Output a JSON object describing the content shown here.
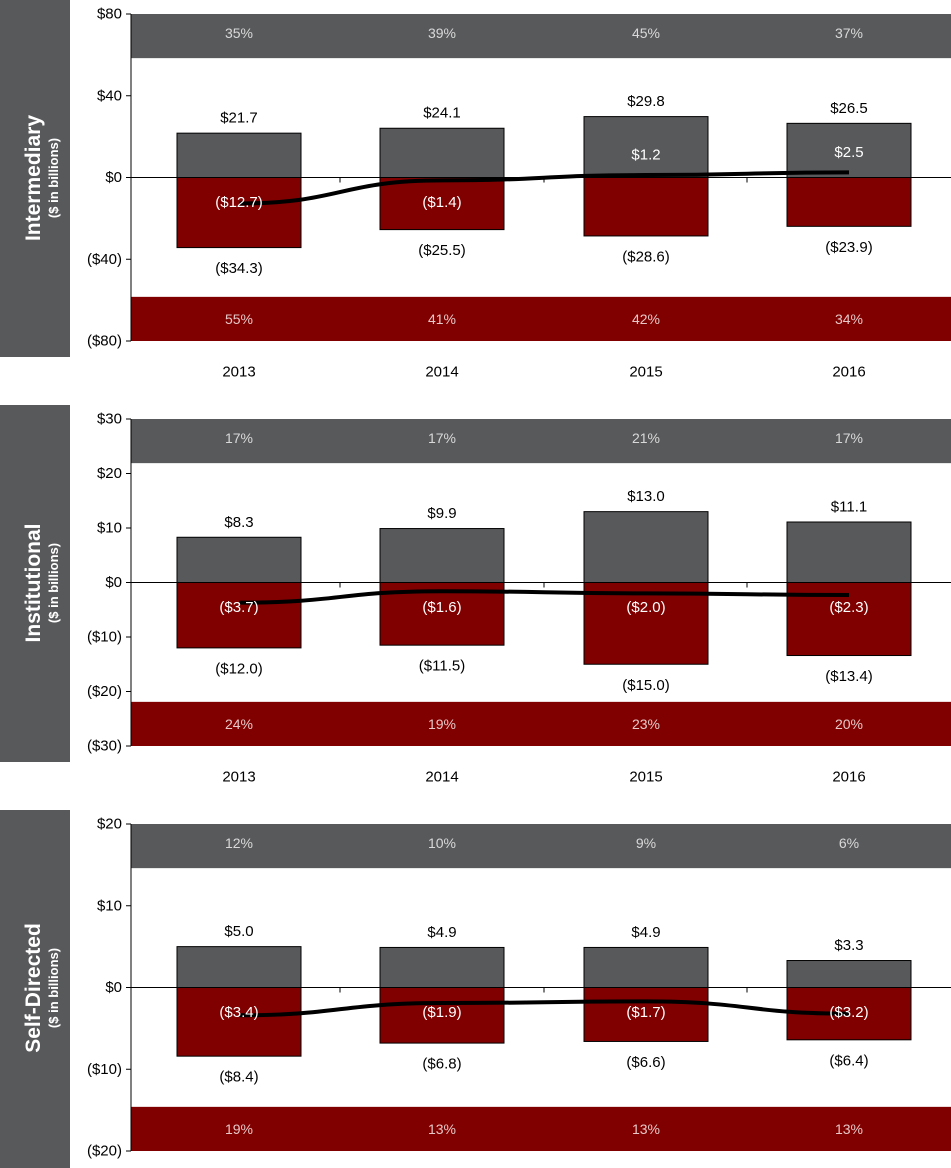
{
  "chart_data": [
    {
      "type": "bar",
      "title": "Intermediary",
      "subtitle": "($ in billions)",
      "categories": [
        "2013",
        "2014",
        "2015",
        "2016"
      ],
      "ylim": [
        -80,
        80
      ],
      "yticks": [
        "$80",
        "$40",
        "$0",
        "($40)",
        "($80)"
      ],
      "band_top": [
        "35%",
        "39%",
        "45%",
        "37%"
      ],
      "band_bottom": [
        "55%",
        "41%",
        "42%",
        "34%"
      ],
      "positive": {
        "values": [
          21.7,
          24.1,
          29.8,
          26.5
        ],
        "labels": [
          "$21.7",
          "$24.1",
          "$29.8",
          "$26.5"
        ],
        "color": "#58595b"
      },
      "negative": {
        "values": [
          -34.3,
          -25.5,
          -28.6,
          -23.9
        ],
        "labels": [
          "($34.3)",
          "($25.5)",
          "($28.6)",
          "($23.9)"
        ],
        "color": "#800000"
      },
      "net": {
        "values": [
          -12.7,
          -1.4,
          1.2,
          2.5
        ],
        "labels": [
          "($12.7)",
          "($1.4)",
          "$1.2",
          "$2.5"
        ],
        "color": "#000000"
      }
    },
    {
      "type": "bar",
      "title": "Institutional",
      "subtitle": "($ in billions)",
      "categories": [
        "2013",
        "2014",
        "2015",
        "2016"
      ],
      "ylim": [
        -30,
        30
      ],
      "yticks": [
        "$30",
        "$20",
        "$10",
        "$0",
        "($10)",
        "($20)",
        "($30)"
      ],
      "band_top": [
        "17%",
        "17%",
        "21%",
        "17%"
      ],
      "band_bottom": [
        "24%",
        "19%",
        "23%",
        "20%"
      ],
      "positive": {
        "values": [
          8.3,
          9.9,
          13.0,
          11.1
        ],
        "labels": [
          "$8.3",
          "$9.9",
          "$13.0",
          "$11.1"
        ],
        "color": "#58595b"
      },
      "negative": {
        "values": [
          -12.0,
          -11.5,
          -15.0,
          -13.4
        ],
        "labels": [
          "($12.0)",
          "($11.5)",
          "($15.0)",
          "($13.4)"
        ],
        "color": "#800000"
      },
      "net": {
        "values": [
          -3.7,
          -1.6,
          -2.0,
          -2.3
        ],
        "labels": [
          "($3.7)",
          "($1.6)",
          "($2.0)",
          "($2.3)"
        ],
        "color": "#000000"
      }
    },
    {
      "type": "bar",
      "title": "Self-Directed",
      "subtitle": "($ in billions)",
      "categories": [
        "2013",
        "2014",
        "2015",
        "2016"
      ],
      "ylim": [
        -20,
        20
      ],
      "yticks": [
        "$20",
        "$10",
        "$0",
        "($10)",
        "($20)"
      ],
      "band_top": [
        "12%",
        "10%",
        "9%",
        "6%"
      ],
      "band_bottom": [
        "19%",
        "13%",
        "13%",
        "13%"
      ],
      "positive": {
        "values": [
          5.0,
          4.9,
          4.9,
          3.3
        ],
        "labels": [
          "$5.0",
          "$4.9",
          "$4.9",
          "$3.3"
        ],
        "color": "#58595b"
      },
      "negative": {
        "values": [
          -8.4,
          -6.8,
          -6.6,
          -6.4
        ],
        "labels": [
          "($8.4)",
          "($6.8)",
          "($6.6)",
          "($6.4)"
        ],
        "color": "#800000"
      },
      "net": {
        "values": [
          -3.4,
          -1.9,
          -1.7,
          -3.2
        ],
        "labels": [
          "($3.4)",
          "($1.9)",
          "($1.7)",
          "($3.2)"
        ],
        "color": "#000000"
      }
    }
  ]
}
